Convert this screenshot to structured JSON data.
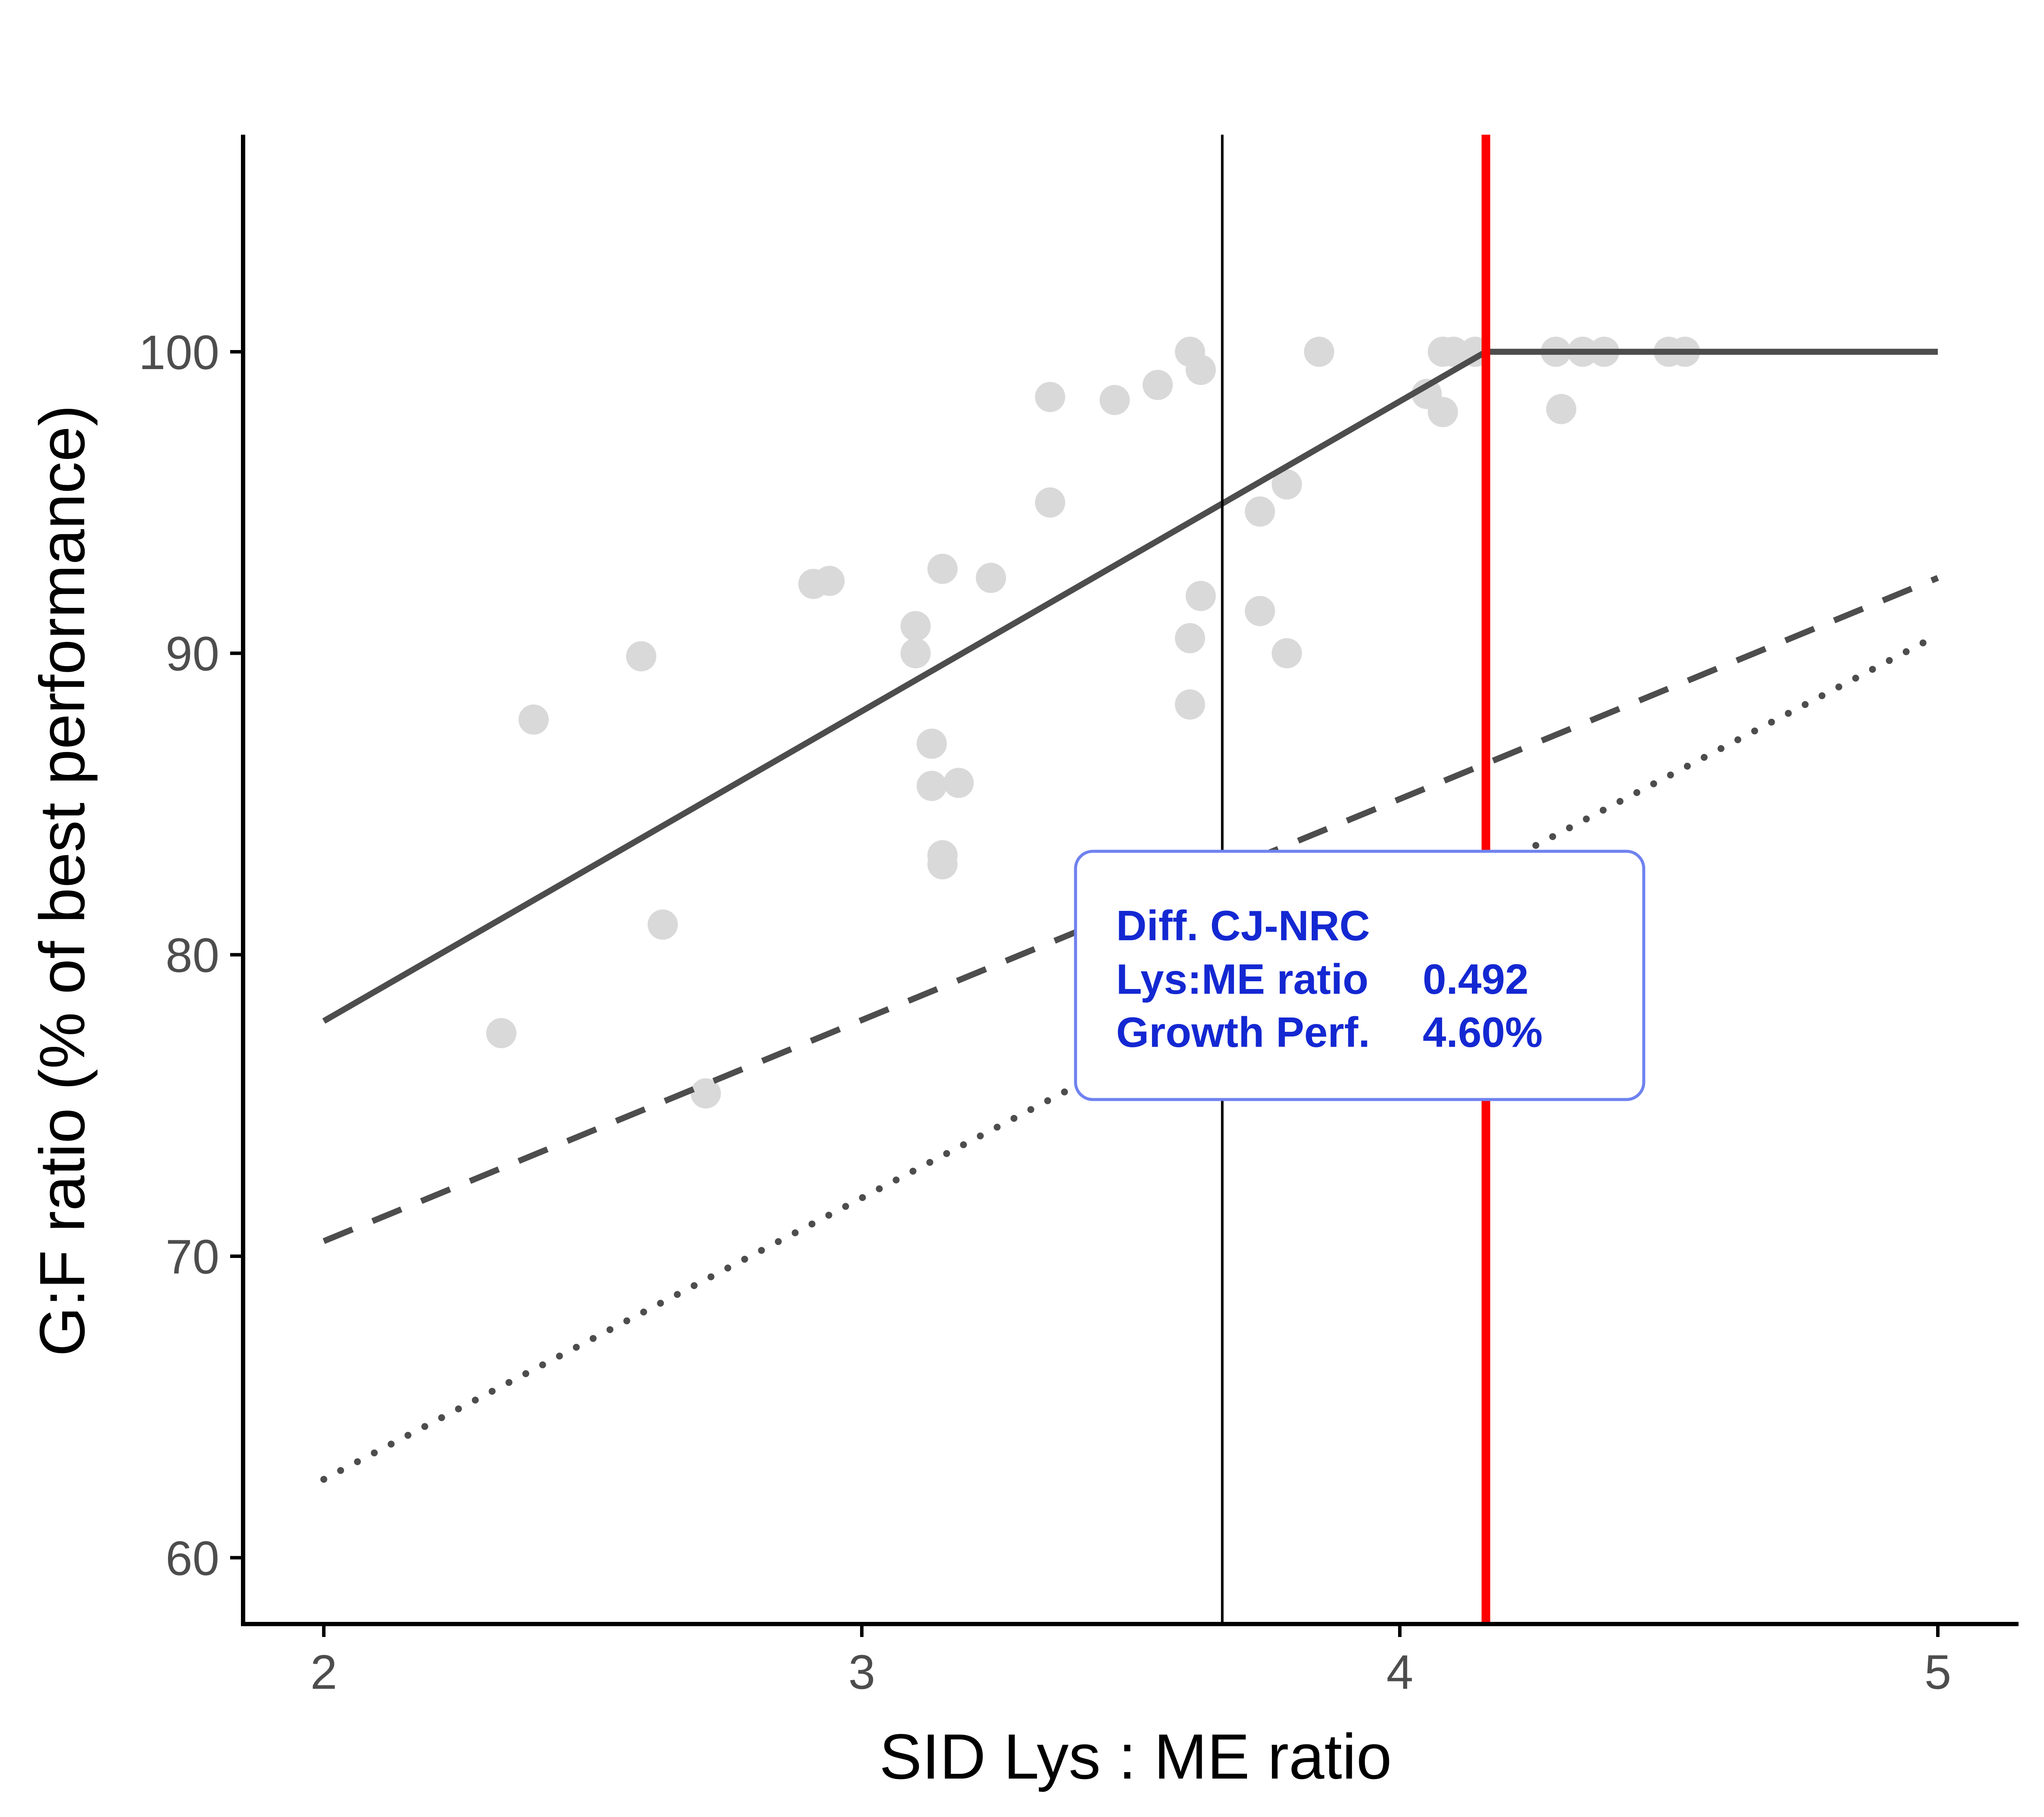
{
  "chart_data": {
    "type": "scatter",
    "title": "",
    "xlabel": "SID Lys : ME ratio",
    "ylabel": "G:F ratio (% of best performance)",
    "xlim": [
      1.85,
      5.15
    ],
    "ylim": [
      57.8,
      107.2
    ],
    "x_ticks": [
      {
        "value": 2,
        "label": "2"
      },
      {
        "value": 3,
        "label": "3"
      },
      {
        "value": 4,
        "label": "4"
      },
      {
        "value": 5,
        "label": "5"
      }
    ],
    "y_ticks": [
      {
        "value": 60,
        "label": "60"
      },
      {
        "value": 70,
        "label": "70"
      },
      {
        "value": 80,
        "label": "80"
      },
      {
        "value": 90,
        "label": "90"
      },
      {
        "value": 100,
        "label": "100"
      }
    ],
    "grid": false,
    "points": [
      {
        "x": 2.33,
        "y": 77.4
      },
      {
        "x": 2.39,
        "y": 87.8
      },
      {
        "x": 2.59,
        "y": 89.9
      },
      {
        "x": 2.63,
        "y": 81.0
      },
      {
        "x": 2.71,
        "y": 75.4
      },
      {
        "x": 2.91,
        "y": 92.3
      },
      {
        "x": 2.94,
        "y": 92.4
      },
      {
        "x": 3.1,
        "y": 90.9
      },
      {
        "x": 3.1,
        "y": 90.0
      },
      {
        "x": 3.13,
        "y": 87.0
      },
      {
        "x": 3.13,
        "y": 85.6
      },
      {
        "x": 3.15,
        "y": 92.8
      },
      {
        "x": 3.15,
        "y": 83.3
      },
      {
        "x": 3.15,
        "y": 83.0
      },
      {
        "x": 3.18,
        "y": 85.7
      },
      {
        "x": 3.24,
        "y": 92.5
      },
      {
        "x": 3.35,
        "y": 98.5
      },
      {
        "x": 3.35,
        "y": 95.0
      },
      {
        "x": 3.47,
        "y": 98.4
      },
      {
        "x": 3.55,
        "y": 98.9
      },
      {
        "x": 3.61,
        "y": 100.0
      },
      {
        "x": 3.63,
        "y": 99.4
      },
      {
        "x": 3.61,
        "y": 90.5
      },
      {
        "x": 3.61,
        "y": 88.3
      },
      {
        "x": 3.63,
        "y": 91.9
      },
      {
        "x": 3.74,
        "y": 94.7
      },
      {
        "x": 3.74,
        "y": 91.4
      },
      {
        "x": 3.79,
        "y": 95.6
      },
      {
        "x": 3.79,
        "y": 90.0
      },
      {
        "x": 3.85,
        "y": 100.0
      },
      {
        "x": 4.05,
        "y": 98.6
      },
      {
        "x": 4.08,
        "y": 100.0
      },
      {
        "x": 4.08,
        "y": 98.0
      },
      {
        "x": 4.1,
        "y": 100.0
      },
      {
        "x": 4.14,
        "y": 100.0
      },
      {
        "x": 4.29,
        "y": 100.0
      },
      {
        "x": 4.3,
        "y": 98.1
      },
      {
        "x": 4.34,
        "y": 100.0
      },
      {
        "x": 4.38,
        "y": 100.0
      },
      {
        "x": 4.5,
        "y": 100.0
      },
      {
        "x": 4.53,
        "y": 100.0
      }
    ],
    "series": [
      {
        "name": "broken-line fit",
        "style": "solid",
        "color": "#4d4d4d",
        "x": [
          2.0,
          4.16,
          5.0
        ],
        "y": [
          77.8,
          100.0,
          100.0
        ]
      },
      {
        "name": "dashed line",
        "style": "dashed",
        "color": "#4d4d4d",
        "x": [
          2.0,
          5.0
        ],
        "y": [
          70.5,
          92.5
        ]
      },
      {
        "name": "dotted line",
        "style": "dotted",
        "color": "#4d4d4d",
        "x": [
          2.0,
          5.0
        ],
        "y": [
          62.6,
          90.6
        ]
      }
    ],
    "reference_lines": [
      {
        "name": "NRC",
        "x": 3.67,
        "color": "#000000"
      },
      {
        "name": "CJ",
        "x": 4.16,
        "color": "#ff0000"
      }
    ],
    "annotation": {
      "title": "Diff. CJ-NRC",
      "rows": [
        {
          "label": "Lys:ME ratio",
          "value": "0.492"
        },
        {
          "label": "Growth Perf.",
          "value": "4.60%"
        }
      ],
      "text_color": "#1428d2",
      "border_color": "#6f82f0"
    },
    "colors": {
      "points": "#d9d9d9",
      "axis": "#000000"
    }
  }
}
